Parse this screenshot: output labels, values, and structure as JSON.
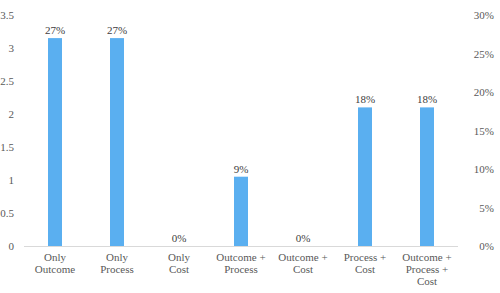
{
  "chart_data": {
    "type": "bar",
    "categories": [
      "Only Outcome",
      "Only Process",
      "Only Cost",
      "Outcome + Process",
      "Outcome + Cost",
      "Process + Cost",
      "Outcome + Process + Cost"
    ],
    "series": [
      {
        "color": "#5aaff0",
        "axis": "y2",
        "values": [
          27,
          27,
          0,
          9,
          0,
          18,
          18
        ],
        "value_labels": [
          "27%",
          "27%",
          "0%",
          "9%",
          "0%",
          "18%",
          "18%"
        ]
      }
    ],
    "ylim": [
      0,
      3.5
    ],
    "yticks": [
      0,
      0.5,
      1,
      1.5,
      2,
      2.5,
      3,
      3.5
    ],
    "y2lim": [
      0,
      30
    ],
    "y2ticks": [
      {
        "value": 0,
        "label": "0%"
      },
      {
        "value": 5,
        "label": "5%"
      },
      {
        "value": 10,
        "label": "10%"
      },
      {
        "value": 15,
        "label": "15%"
      },
      {
        "value": 20,
        "label": "20%"
      },
      {
        "value": 25,
        "label": "25%"
      },
      {
        "value": 30,
        "label": "30%"
      }
    ],
    "data_labels": true,
    "grid": false
  }
}
